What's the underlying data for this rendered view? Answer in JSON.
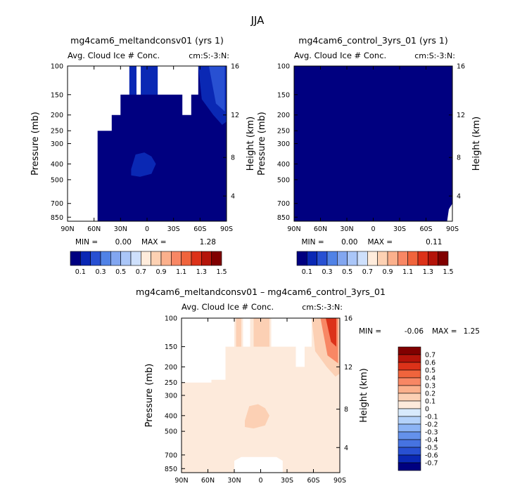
{
  "figure_title": "JJA",
  "colors": {
    "ice_scale": [
      "#000080",
      "#0a28b4",
      "#2850d2",
      "#5082e6",
      "#82a6f0",
      "#aac6f8",
      "#cee0fc",
      "#ffecdc",
      "#fdd1b3",
      "#fbb08c",
      "#f88764",
      "#f0643c",
      "#dc3219",
      "#b4140a",
      "#800000"
    ],
    "diff_scale": [
      "#000080",
      "#0a28b4",
      "#2850d2",
      "#4673e1",
      "#6491eb",
      "#8cb4f5",
      "#b4d2fa",
      "#d8eafc",
      "#fdeadb",
      "#fcd0b4",
      "#fbb08c",
      "#f88764",
      "#f0643c",
      "#dc3219",
      "#b4140a",
      "#800000"
    ]
  },
  "chart_data": [
    {
      "id": "panel1",
      "type": "heatmap",
      "title": "mg4cam6_meltandconsv01 (yrs 1)",
      "subtitle_left": "Avg. Cloud Ice # Conc.",
      "subtitle_right": "cm:S:-3:N:",
      "ylabel": "Pressure (mb)",
      "ylabel_right": "Height (km)",
      "xticks": [
        "90N",
        "60N",
        "30N",
        "0",
        "30S",
        "60S",
        "90S"
      ],
      "xlim": [
        90,
        -90
      ],
      "yticks": [
        "100",
        "150",
        "200",
        "250",
        "300",
        "400",
        "500",
        "700",
        "850"
      ],
      "ylim": [
        100,
        900
      ],
      "yticks_right": [
        "16",
        "12",
        "8",
        "4"
      ],
      "stats": {
        "min_label": "MIN =",
        "min": "0.00",
        "max_label": "MAX =",
        "max": "1.28"
      },
      "fields": [
        {
          "level_index": 0,
          "polygon": [
            [
              56,
              900
            ],
            [
              56,
              250
            ],
            [
              40,
              250
            ],
            [
              40,
              200
            ],
            [
              30,
              200
            ],
            [
              30,
              150
            ],
            [
              20,
              150
            ],
            [
              20,
              100
            ],
            [
              12,
              100
            ],
            [
              12,
              150
            ],
            [
              7,
              150
            ],
            [
              7,
              100
            ],
            [
              -12,
              100
            ],
            [
              -12,
              150
            ],
            [
              -40,
              150
            ],
            [
              -40,
              200
            ],
            [
              -50,
              200
            ],
            [
              -50,
              150
            ],
            [
              -58,
              150
            ],
            [
              -58,
              100
            ],
            [
              -90,
              100
            ],
            [
              -90,
              900
            ]
          ]
        },
        {
          "level_index": 1,
          "polygon": [
            [
              20,
              100
            ],
            [
              12,
              100
            ],
            [
              12,
              150
            ],
            [
              20,
              150
            ]
          ]
        },
        {
          "level_index": 1,
          "polygon": [
            [
              7,
              100
            ],
            [
              -12,
              100
            ],
            [
              -12,
              150
            ],
            [
              7,
              150
            ]
          ]
        },
        {
          "level_index": 1,
          "polygon": [
            [
              18,
              430
            ],
            [
              13,
              350
            ],
            [
              3,
              340
            ],
            [
              -5,
              360
            ],
            [
              -10,
              400
            ],
            [
              -5,
              460
            ],
            [
              8,
              480
            ],
            [
              18,
              470
            ]
          ]
        },
        {
          "level_index": 1,
          "polygon": [
            [
              -58,
              100
            ],
            [
              -90,
              100
            ],
            [
              -90,
              220
            ],
            [
              -85,
              230
            ],
            [
              -75,
              200
            ],
            [
              -62,
              160
            ]
          ]
        },
        {
          "level_index": 2,
          "polygon": [
            [
              -70,
              100
            ],
            [
              -88,
              100
            ],
            [
              -88,
              190
            ],
            [
              -78,
              170
            ]
          ]
        }
      ],
      "colorbar": {
        "levels": [
          "0.1",
          "0.3",
          "0.5",
          "0.7",
          "0.9",
          "1.1",
          "1.3",
          "1.5"
        ]
      }
    },
    {
      "id": "panel2",
      "type": "heatmap",
      "title": "mg4cam6_control_3yrs_01 (yrs 1)",
      "subtitle_left": "Avg. Cloud Ice # Conc.",
      "subtitle_right": "cm:S:-3:N:",
      "ylabel": "Pressure (mb)",
      "ylabel_right": "Height (km)",
      "xticks": [
        "90N",
        "60N",
        "30N",
        "0",
        "30S",
        "60S",
        "90S"
      ],
      "xlim": [
        90,
        -90
      ],
      "yticks": [
        "100",
        "150",
        "200",
        "250",
        "300",
        "400",
        "500",
        "700",
        "850"
      ],
      "yticks_right": [
        "16",
        "12",
        "8",
        "4"
      ],
      "ylim": [
        100,
        900
      ],
      "stats": {
        "min_label": "MIN =",
        "min": "0.00",
        "max_label": "MAX =",
        "max": "0.11"
      },
      "fields": [
        {
          "level_index": 0,
          "polygon": [
            [
              90,
              100
            ],
            [
              -90,
              100
            ],
            [
              -90,
              700
            ],
            [
              -86,
              760
            ],
            [
              -84,
              900
            ],
            [
              30,
              900
            ],
            [
              30,
              800
            ],
            [
              23,
              750
            ],
            [
              18,
              700
            ],
            [
              -18,
              700
            ],
            [
              -23,
              750
            ],
            [
              -28,
              800
            ],
            [
              -28,
              900
            ],
            [
              90,
              900
            ]
          ]
        }
      ],
      "colorbar": {
        "levels": [
          "0.1",
          "0.3",
          "0.5",
          "0.7",
          "0.9",
          "1.1",
          "1.3",
          "1.5"
        ]
      }
    },
    {
      "id": "panel3",
      "type": "heatmap",
      "title": "mg4cam6_meltandconsv01 – mg4cam6_control_3yrs_01",
      "subtitle_left": "Avg. Cloud Ice # Conc.",
      "subtitle_right": "cm:S:-3:N:",
      "ylabel": "Pressure (mb)",
      "ylabel_right": "Height (km)",
      "xticks": [
        "90N",
        "60N",
        "30N",
        "0",
        "30S",
        "60S",
        "90S"
      ],
      "xlim": [
        90,
        -90
      ],
      "yticks": [
        "100",
        "150",
        "200",
        "250",
        "300",
        "400",
        "500",
        "700",
        "850"
      ],
      "yticks_right": [
        "16",
        "12",
        "8",
        "4"
      ],
      "ylim": [
        100,
        900
      ],
      "stats": {
        "min_label": "MIN =",
        "min": "-0.06",
        "max_label": "MAX =",
        "max": "1.25"
      },
      "fields": [
        {
          "level_index": 8,
          "polygon": [
            [
              90,
              900
            ],
            [
              90,
              250
            ],
            [
              56,
              250
            ],
            [
              56,
              240
            ],
            [
              40,
              240
            ],
            [
              40,
              150
            ],
            [
              30,
              150
            ],
            [
              30,
              100
            ],
            [
              20,
              100
            ],
            [
              20,
              150
            ],
            [
              12,
              150
            ],
            [
              12,
              100
            ],
            [
              -12,
              100
            ],
            [
              -12,
              150
            ],
            [
              -40,
              150
            ],
            [
              -40,
              200
            ],
            [
              -50,
              200
            ],
            [
              -50,
              150
            ],
            [
              -58,
              150
            ],
            [
              -58,
              100
            ],
            [
              -90,
              100
            ],
            [
              -90,
              900
            ],
            [
              -25,
              900
            ],
            [
              -25,
              760
            ],
            [
              -18,
              720
            ],
            [
              22,
              720
            ],
            [
              30,
              760
            ],
            [
              30,
              900
            ]
          ]
        },
        {
          "level_index": 9,
          "polygon": [
            [
              28,
              100
            ],
            [
              22,
              100
            ],
            [
              22,
              150
            ],
            [
              28,
              150
            ]
          ]
        },
        {
          "level_index": 9,
          "polygon": [
            [
              8,
              100
            ],
            [
              -10,
              100
            ],
            [
              -10,
              150
            ],
            [
              8,
              150
            ]
          ]
        },
        {
          "level_index": 9,
          "polygon": [
            [
              18,
              430
            ],
            [
              13,
              350
            ],
            [
              3,
              340
            ],
            [
              -5,
              360
            ],
            [
              -10,
              400
            ],
            [
              -5,
              460
            ],
            [
              8,
              480
            ],
            [
              18,
              470
            ]
          ]
        },
        {
          "level_index": 9,
          "polygon": [
            [
              -58,
              100
            ],
            [
              -90,
              100
            ],
            [
              -90,
              220
            ],
            [
              -85,
              230
            ],
            [
              -75,
              200
            ],
            [
              -62,
              160
            ]
          ]
        },
        {
          "level_index": 11,
          "polygon": [
            [
              -68,
              100
            ],
            [
              -88,
              100
            ],
            [
              -88,
              190
            ],
            [
              -76,
              170
            ]
          ]
        },
        {
          "level_index": 13,
          "polygon": [
            [
              -74,
              100
            ],
            [
              -86,
              100
            ],
            [
              -86,
              150
            ],
            [
              -80,
              140
            ]
          ]
        }
      ],
      "colorbar": {
        "levels": [
          "0.7",
          "0.6",
          "0.5",
          "0.4",
          "0.3",
          "0.2",
          "0.1",
          "0",
          "-0.1",
          "-0.2",
          "-0.3",
          "-0.4",
          "-0.5",
          "-0.6",
          "-0.7"
        ]
      }
    }
  ]
}
